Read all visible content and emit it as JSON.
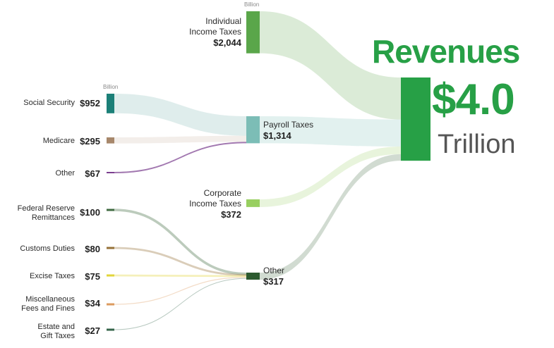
{
  "unit_label": "Billion",
  "total": {
    "title": "Revenues",
    "value": "$4.0",
    "unit": "Trillion",
    "color": "#27a046"
  },
  "middle": [
    {
      "id": "individual",
      "name_lines": [
        "Individual",
        "Income Taxes"
      ],
      "value_label": "$2,044",
      "value": 2044,
      "color": "#5aa64a"
    },
    {
      "id": "payroll",
      "name_lines": [
        "Payroll Taxes"
      ],
      "value_label": "$1,314",
      "value": 1314,
      "color": "#7cbdb6"
    },
    {
      "id": "corporate",
      "name_lines": [
        "Corporate",
        "Income Taxes"
      ],
      "value_label": "$372",
      "value": 372,
      "color": "#98cf60"
    },
    {
      "id": "other",
      "name_lines": [
        "Other"
      ],
      "value_label": "$317",
      "value": 317,
      "color": "#2c5a2f"
    }
  ],
  "payroll_sources": [
    {
      "id": "social-security",
      "name_lines": [
        "Social Security"
      ],
      "value_label": "$952",
      "value": 952,
      "color": "#1c8078"
    },
    {
      "id": "medicare",
      "name_lines": [
        "Medicare"
      ],
      "value_label": "$295",
      "value": 295,
      "color": "#a7876b"
    },
    {
      "id": "payroll-other",
      "name_lines": [
        "Other"
      ],
      "value_label": "$67",
      "value": 67,
      "color": "#7b3f8f"
    }
  ],
  "other_sources": [
    {
      "id": "federal-reserve",
      "name_lines": [
        "Federal Reserve",
        "Remittances"
      ],
      "value_label": "$100",
      "value": 100,
      "color": "#3f6b40"
    },
    {
      "id": "customs",
      "name_lines": [
        "Customs Duties"
      ],
      "value_label": "$80",
      "value": 80,
      "color": "#957037"
    },
    {
      "id": "excise",
      "name_lines": [
        "Excise Taxes"
      ],
      "value_label": "$75",
      "value": 75,
      "color": "#e2d53a"
    },
    {
      "id": "misc-fees",
      "name_lines": [
        "Miscellaneous",
        "Fees and Fines"
      ],
      "value_label": "$34",
      "value": 34,
      "color": "#dc9b5f"
    },
    {
      "id": "estate-gift",
      "name_lines": [
        "Estate and",
        "Gift Taxes"
      ],
      "value_label": "$27",
      "value": 27,
      "color": "#35644a"
    }
  ]
}
